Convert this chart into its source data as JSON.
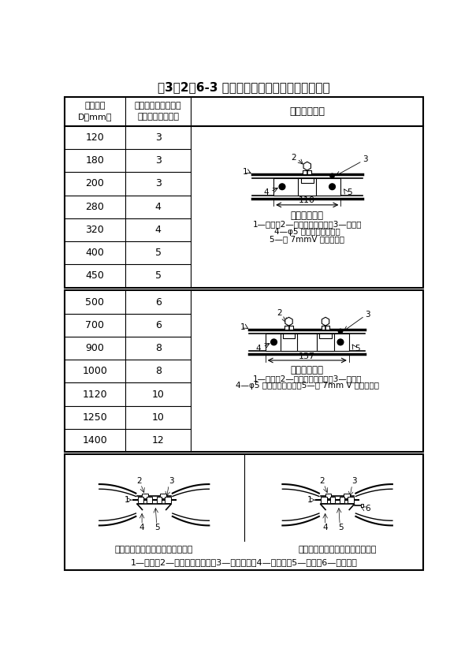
{
  "title": "表3．2．6-3 内胀芯管螺钉数量及制作安装形式",
  "col1_header_line1": "风管直径",
  "col1_header_line2": "D（mm）",
  "col2_header_line1": "芯管每端口自攻螺钉",
  "col2_header_line2": "或铆钉数量（个）",
  "col3_header": "内胀芯管形式",
  "table1_rows": [
    [
      "120",
      "3"
    ],
    [
      "180",
      "3"
    ],
    [
      "200",
      "3"
    ],
    [
      "280",
      "4"
    ],
    [
      "320",
      "4"
    ],
    [
      "400",
      "5"
    ],
    [
      "450",
      "5"
    ]
  ],
  "table2_rows": [
    [
      "500",
      "6"
    ],
    [
      "700",
      "6"
    ],
    [
      "900",
      "8"
    ],
    [
      "1000",
      "8"
    ],
    [
      "1120",
      "10"
    ],
    [
      "1250",
      "10"
    ],
    [
      "1400",
      "12"
    ]
  ],
  "diagram1_title": "单箍内胀芯管",
  "diagram1_desc1": "1—风管；2—固定耳（焊接）；3—铆钉；",
  "diagram1_desc2": "4—φ5 实芯橡胶密封圈；",
  "diagram1_desc3": "5—宽 7mmV 形密封槽口",
  "diagram1_dim": "110",
  "diagram2_title": "双箍内胀芯管",
  "diagram2_desc1": "1—风管；2—固定耳（焊接）；3—铆钉；",
  "diagram2_desc2": "4—φ5 实芯橡胶密封圈；5—宽 7mm V 形密封槽口",
  "diagram2_dim": "137",
  "bottom_left_caption": "内胀芯管安装前开口处的搭接状态",
  "bottom_right_caption": "内胀芯管安装后开口处的搭接状态",
  "bottom_legend": "1—螺杆；2—固定耳（焊接）；3—顶推螺母；4—缀缝焊；5—衬板；6—自攻螺丝",
  "bg_color": "#ffffff",
  "border_color": "#000000",
  "text_color": "#000000"
}
